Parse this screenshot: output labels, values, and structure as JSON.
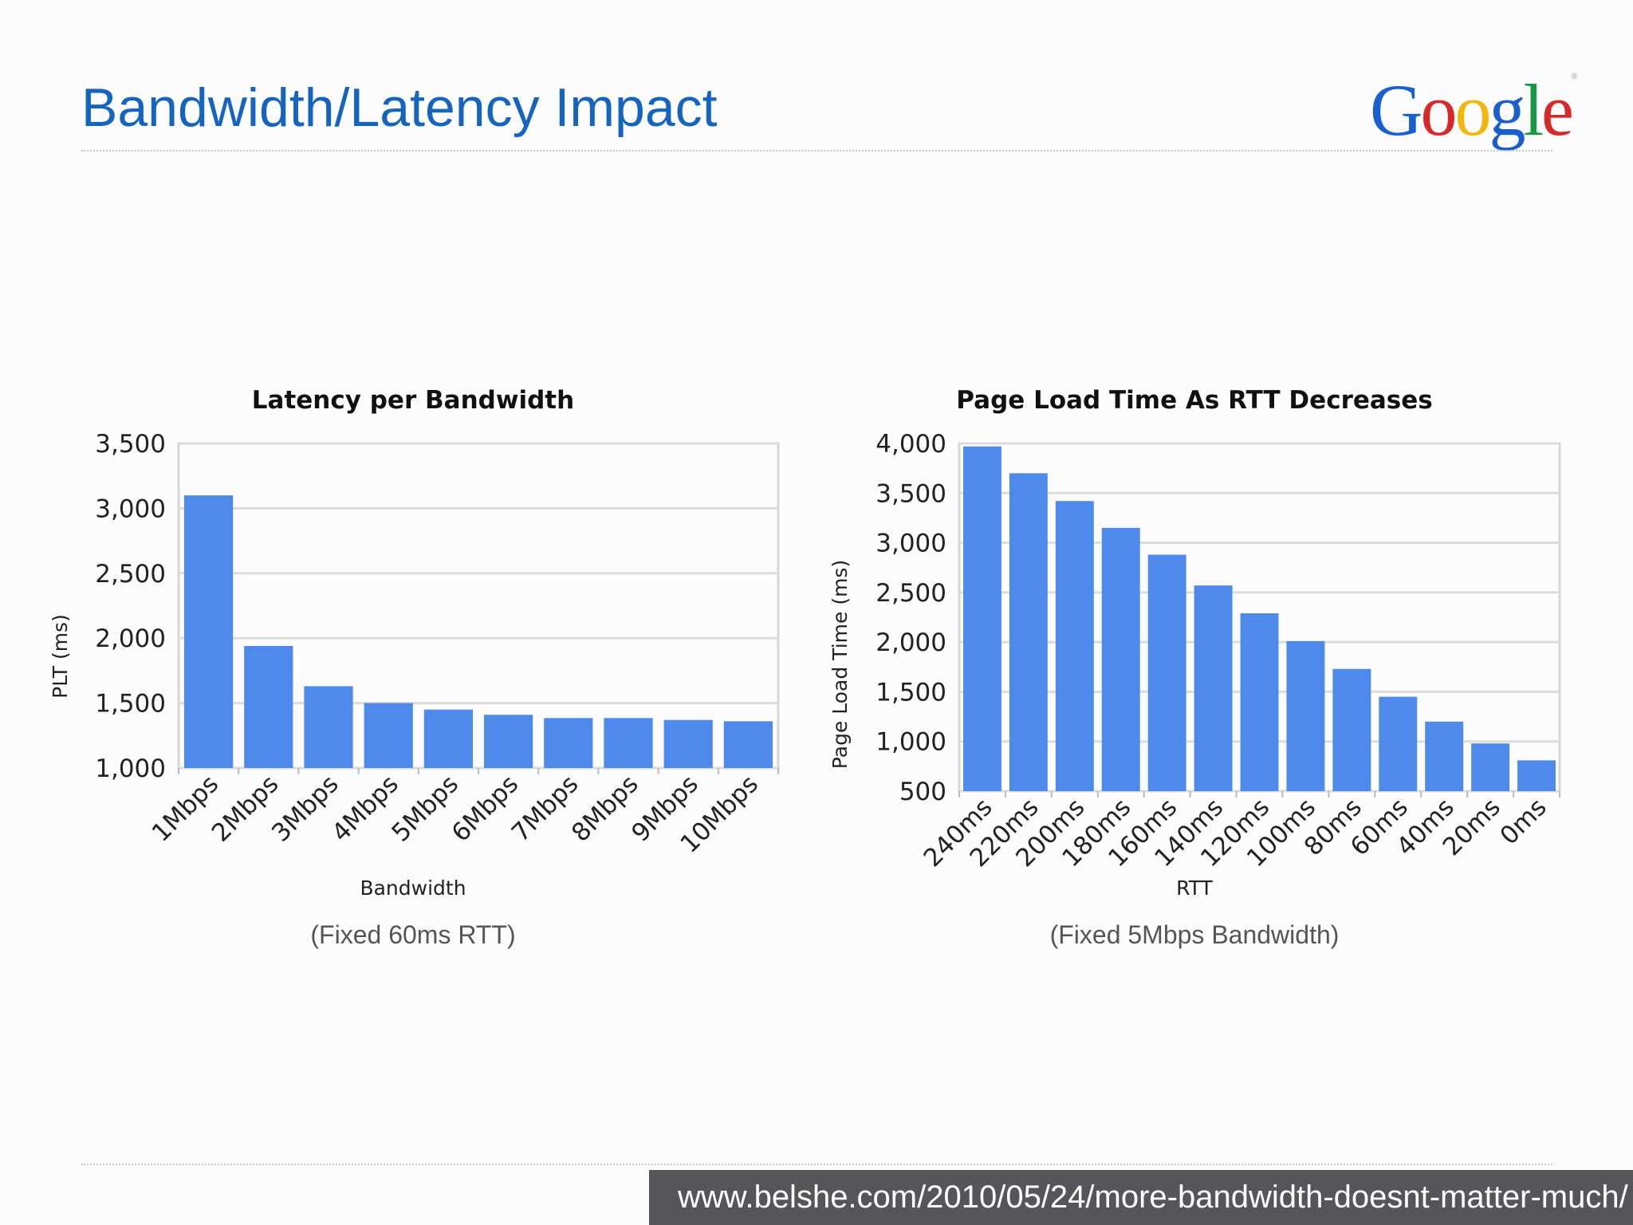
{
  "slide": {
    "title": "Bandwidth/Latency Impact",
    "logo_text": "Google",
    "source_url": "www.belshe.com/2010/05/24/more-bandwidth-doesnt-matter-much/"
  },
  "colors": {
    "title": "#1565c0",
    "bar": "#4d8aeb",
    "grid": "#dcdcdc",
    "source_bar": "#56565a"
  },
  "captions": {
    "left": "(Fixed 60ms RTT)",
    "right": "(Fixed 5Mbps Bandwidth)"
  },
  "chart_data": [
    {
      "type": "bar",
      "title": "Latency per Bandwidth",
      "xlabel": "Bandwidth",
      "ylabel": "PLT (ms)",
      "ylim": [
        1000,
        3500
      ],
      "yticks": [
        1000,
        1500,
        2000,
        2500,
        3000,
        3500
      ],
      "ytick_labels": [
        "1,000",
        "1,500",
        "2,000",
        "2,500",
        "3,000",
        "3,500"
      ],
      "categories": [
        "1Mbps",
        "2Mbps",
        "3Mbps",
        "4Mbps",
        "5Mbps",
        "6Mbps",
        "7Mbps",
        "8Mbps",
        "9Mbps",
        "10Mbps"
      ],
      "values": [
        3100,
        1940,
        1630,
        1500,
        1450,
        1410,
        1385,
        1385,
        1370,
        1360
      ],
      "grid": true,
      "legend": "none"
    },
    {
      "type": "bar",
      "title": "Page Load Time As RTT Decreases",
      "xlabel": "RTT",
      "ylabel": "Page Load Time (ms)",
      "ylim": [
        500,
        4000
      ],
      "yticks": [
        500,
        1000,
        1500,
        2000,
        2500,
        3000,
        3500,
        4000
      ],
      "ytick_labels": [
        "500",
        "1,000",
        "1,500",
        "2,000",
        "2,500",
        "3,000",
        "3,500",
        "4,000"
      ],
      "categories": [
        "240ms",
        "220ms",
        "200ms",
        "180ms",
        "160ms",
        "140ms",
        "120ms",
        "100ms",
        "80ms",
        "60ms",
        "40ms",
        "20ms",
        "0ms"
      ],
      "values": [
        3970,
        3700,
        3420,
        3150,
        2880,
        2570,
        2290,
        2010,
        1730,
        1450,
        1200,
        980,
        810
      ],
      "grid": true,
      "legend": "none"
    }
  ]
}
